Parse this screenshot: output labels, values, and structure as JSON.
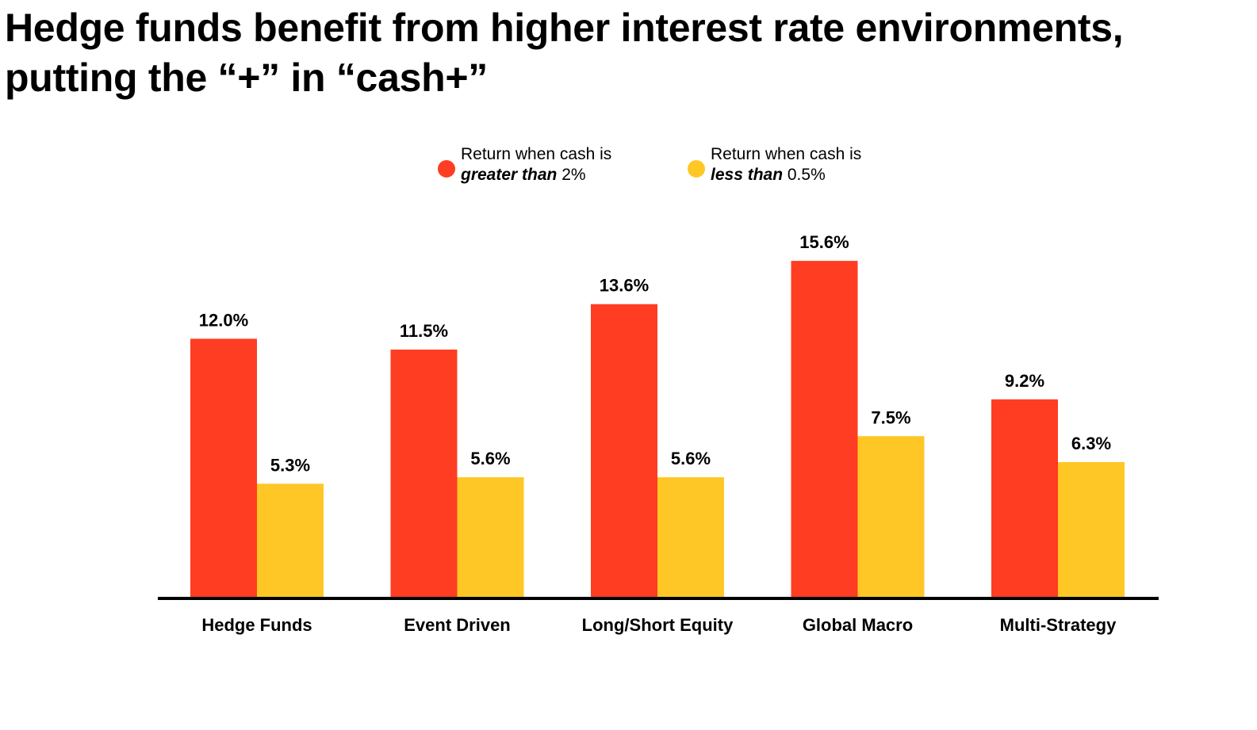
{
  "title": {
    "line1": "Hedge funds benefit from higher interest rate environments,",
    "line2": "putting the “+” in “cash+”"
  },
  "colors": {
    "series_high": "#FF3D22",
    "series_low": "#FFC726",
    "axis": "#000000",
    "text": "#000000"
  },
  "legend": [
    {
      "line1": "Return when cash is",
      "emphasis": "greater than",
      "rest": " 2%"
    },
    {
      "line1": "Return when cash is",
      "emphasis": "less than",
      "rest": " 0.5%"
    }
  ],
  "chart_data": {
    "type": "bar",
    "title": "Hedge funds benefit from higher interest rate environments, putting the “+” in “cash+”",
    "categories": [
      "Hedge Funds",
      "Event Driven",
      "Long/Short Equity",
      "Global Macro",
      "Multi-Strategy"
    ],
    "series": [
      {
        "name": "Return when cash is greater than 2%",
        "values": [
          12.0,
          11.5,
          13.6,
          15.6,
          9.2
        ],
        "labels": [
          "12.0%",
          "11.5%",
          "13.6%",
          "15.6%",
          "9.2%"
        ]
      },
      {
        "name": "Return when cash is less than 0.5%",
        "values": [
          5.3,
          5.6,
          5.6,
          7.5,
          6.3
        ],
        "labels": [
          "5.3%",
          "5.6%",
          "5.6%",
          "7.5%",
          "6.3%"
        ]
      }
    ],
    "xlabel": "",
    "ylabel": "",
    "ylim": [
      0,
      16
    ],
    "grid": false,
    "legend_position": "top-center"
  }
}
